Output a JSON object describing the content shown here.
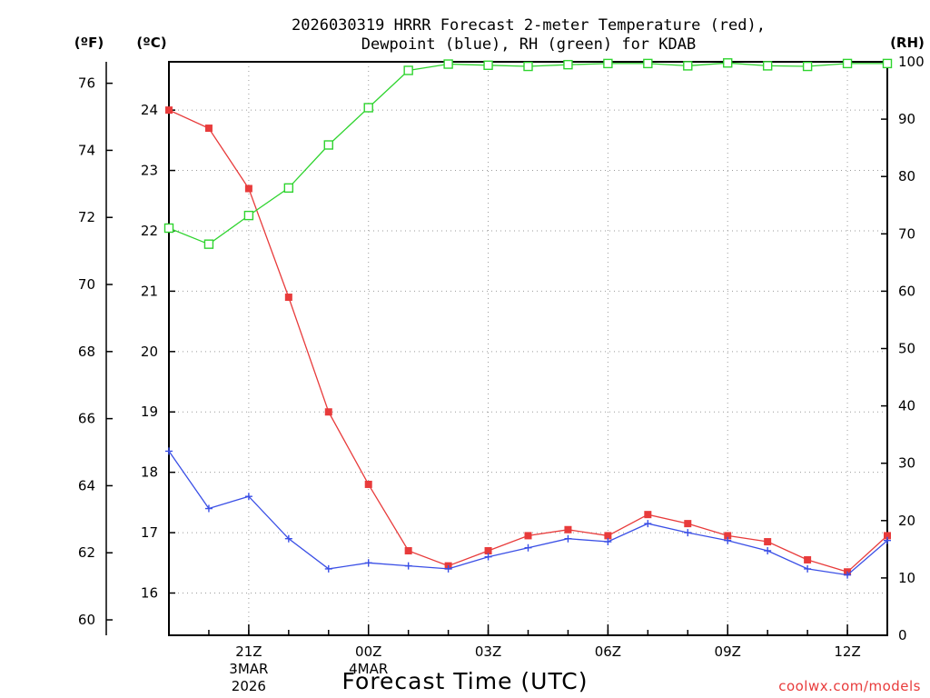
{
  "chart_data": {
    "type": "line",
    "title_line1": "2026030319 HRRR Forecast 2-meter Temperature (red),",
    "title_line2": "Dewpoint (blue), RH (green) for KDAB",
    "xlabel": "Forecast Time (UTC)",
    "credit": "coolwx.com/models",
    "credit_color": "#e83b3b",
    "units": {
      "fahrenheit": "(ºF)",
      "celsius": "(ºC)",
      "rh": "(RH)"
    },
    "x_hours": [
      19,
      20,
      21,
      22,
      23,
      0,
      1,
      2,
      3,
      4,
      5,
      6,
      7,
      8,
      9,
      10,
      11,
      12,
      13
    ],
    "x_ticks": [
      {
        "hour_index": 2,
        "lines": [
          "21Z",
          "3MAR",
          "2026"
        ]
      },
      {
        "hour_index": 5,
        "lines": [
          "00Z",
          "4MAR"
        ]
      },
      {
        "hour_index": 8,
        "lines": [
          "03Z"
        ]
      },
      {
        "hour_index": 11,
        "lines": [
          "06Z"
        ]
      },
      {
        "hour_index": 14,
        "lines": [
          "09Z"
        ]
      },
      {
        "hour_index": 17,
        "lines": [
          "12Z"
        ]
      }
    ],
    "celsius_range": [
      15.3,
      24.8
    ],
    "celsius_ticks": [
      "16",
      "17",
      "18",
      "19",
      "20",
      "21",
      "22",
      "23",
      "24"
    ],
    "fahrenheit_ticks": [
      "60",
      "62",
      "64",
      "66",
      "68",
      "70",
      "72",
      "74",
      "76"
    ],
    "rh_range": [
      0,
      100
    ],
    "rh_ticks": [
      "0",
      "10",
      "20",
      "30",
      "40",
      "50",
      "60",
      "70",
      "80",
      "90",
      "100"
    ],
    "grid": true,
    "series": [
      {
        "name": "Temperature",
        "axis": "celsius",
        "color": "#e83b3b",
        "marker": "filled-square",
        "values": [
          24.0,
          23.7,
          22.7,
          20.9,
          19.0,
          17.8,
          16.7,
          16.45,
          16.7,
          16.95,
          17.05,
          16.95,
          17.3,
          17.15,
          16.95,
          16.85,
          16.55,
          16.35,
          16.95
        ]
      },
      {
        "name": "Dewpoint",
        "axis": "celsius",
        "color": "#3a4fe6",
        "marker": "plus",
        "values": [
          18.35,
          17.4,
          17.6,
          16.9,
          16.4,
          16.5,
          16.45,
          16.4,
          16.6,
          16.75,
          16.9,
          16.85,
          17.15,
          17.0,
          16.87,
          16.7,
          16.4,
          16.3,
          16.87
        ]
      },
      {
        "name": "RH",
        "axis": "rh",
        "color": "#2fd42f",
        "marker": "open-square",
        "values": [
          71,
          68.2,
          73.2,
          78,
          85.5,
          92,
          98.5,
          99.6,
          99.4,
          99.2,
          99.5,
          99.7,
          99.7,
          99.3,
          99.8,
          99.3,
          99.2,
          99.7,
          99.7
        ]
      }
    ]
  }
}
